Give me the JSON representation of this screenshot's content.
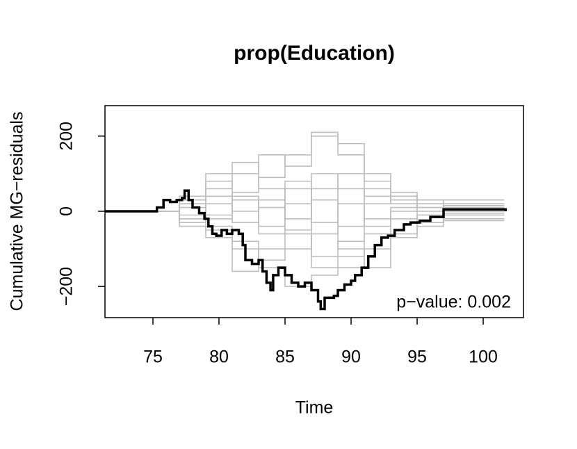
{
  "chart_data": {
    "type": "step",
    "title": "prop(Education)",
    "xlabel": "Time",
    "ylabel": "Cumulative MG−residuals",
    "annotation": "p−value: 0.002",
    "xlim": [
      71.37,
      103.05
    ],
    "ylim": [
      -283,
      281
    ],
    "xticks": [
      75,
      80,
      85,
      90,
      95,
      100
    ],
    "yticks": [
      {
        "value": -200,
        "label": "−200"
      },
      0,
      200
    ],
    "x": [
      71.4,
      75,
      77,
      79,
      81,
      83,
      85,
      87,
      89,
      91,
      93,
      95,
      97,
      101.6
    ],
    "series": [
      {
        "color": "#bebebe",
        "values": [
          0,
          0,
          20,
          60,
          100,
          150,
          120,
          200,
          180,
          100,
          50,
          30,
          20,
          20
        ]
      },
      {
        "color": "#bebebe",
        "values": [
          0,
          0,
          -20,
          -50,
          -100,
          -150,
          -200,
          -170,
          -150,
          -100,
          -60,
          -30,
          -20,
          -20
        ]
      },
      {
        "color": "#bebebe",
        "values": [
          0,
          0,
          40,
          80,
          30,
          -40,
          60,
          -120,
          -80,
          20,
          40,
          10,
          30,
          30
        ]
      },
      {
        "color": "#bebebe",
        "values": [
          0,
          0,
          -30,
          -10,
          50,
          90,
          150,
          210,
          150,
          80,
          40,
          20,
          10,
          10
        ]
      },
      {
        "color": "#bebebe",
        "values": [
          0,
          0,
          10,
          -40,
          -80,
          -130,
          -100,
          -60,
          20,
          60,
          30,
          0,
          -10,
          -10
        ]
      },
      {
        "color": "#bebebe",
        "values": [
          0,
          0,
          30,
          100,
          130,
          60,
          -20,
          30,
          -100,
          -150,
          -70,
          -40,
          0,
          0
        ]
      },
      {
        "color": "#bebebe",
        "values": [
          0,
          0,
          -10,
          20,
          -30,
          10,
          80,
          -30,
          60,
          -40,
          10,
          20,
          -25,
          -25
        ]
      },
      {
        "color": "#bebebe",
        "values": [
          0,
          0,
          -40,
          -70,
          -160,
          -100,
          -60,
          -150,
          -120,
          -60,
          -20,
          -10,
          15,
          15
        ]
      },
      {
        "color": "#bebebe",
        "values": [
          0,
          0,
          20,
          -20,
          40,
          -60,
          20,
          100,
          -40,
          -20,
          0,
          -30,
          5,
          5
        ]
      },
      {
        "color": "#bebebe",
        "values": [
          0,
          0,
          -20,
          40,
          0,
          30,
          -50,
          60,
          100,
          40,
          20,
          10,
          -5,
          -5
        ]
      },
      {
        "color": "#000000",
        "x": [
          71.4,
          75.3,
          75.8,
          76.3,
          76.8,
          77.2,
          77.4,
          77.7,
          78,
          78.5,
          78.9,
          79.2,
          79.5,
          79.8,
          80.2,
          80.6,
          81,
          81.5,
          81.8,
          82,
          82.5,
          83,
          83.3,
          83.6,
          83.9,
          84.1,
          84.5,
          85,
          85.5,
          86,
          86.5,
          87,
          87.5,
          87.7,
          88,
          88.7,
          89,
          89.5,
          90,
          90.3,
          90.8,
          91.3,
          91.8,
          92.3,
          92.8,
          93.3,
          94,
          94.5,
          95.2,
          96,
          97,
          101.6,
          101.7
        ],
        "values": [
          0,
          10,
          30,
          25,
          30,
          35,
          55,
          30,
          10,
          -5,
          -20,
          -40,
          -60,
          -65,
          -50,
          -60,
          -50,
          -60,
          -90,
          -130,
          -140,
          -130,
          -160,
          -190,
          -210,
          -170,
          -150,
          -170,
          -190,
          -200,
          -190,
          -210,
          -240,
          -260,
          -230,
          -225,
          -210,
          -195,
          -185,
          -170,
          -150,
          -120,
          -90,
          -70,
          -65,
          -50,
          -35,
          -30,
          -25,
          -15,
          5,
          5,
          0
        ]
      }
    ]
  }
}
